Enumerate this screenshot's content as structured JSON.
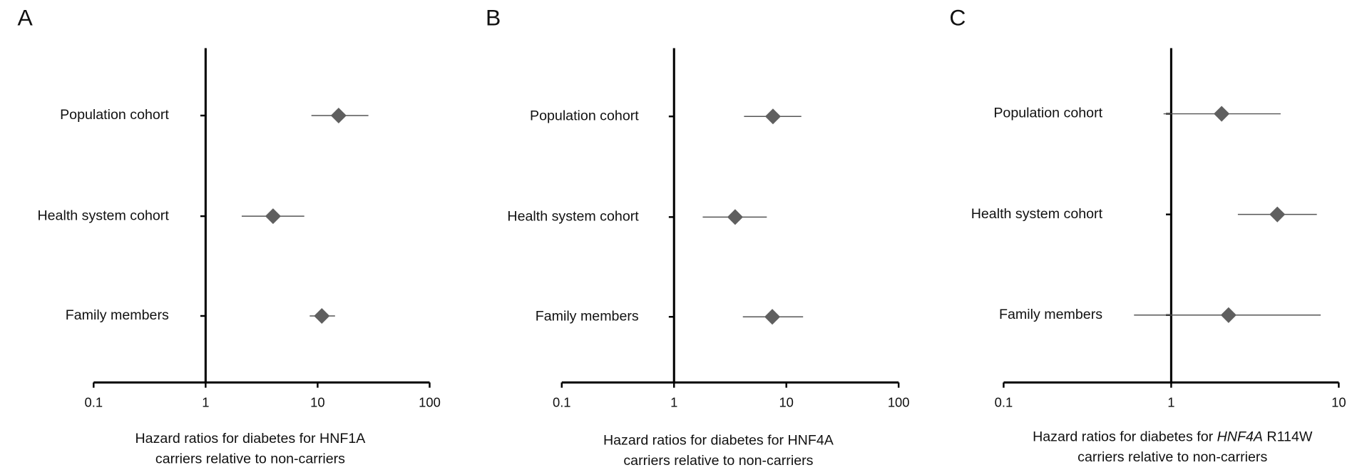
{
  "chart_data": [
    {
      "type": "forest",
      "panel": "A",
      "categories": [
        "Population cohort",
        "Health system cohort",
        "Family members"
      ],
      "values": [
        15.4,
        4.0,
        10.9
      ],
      "ci_low": [
        8.8,
        2.1,
        8.5
      ],
      "ci_high": [
        28.4,
        7.6,
        14.3
      ],
      "color": "#5f5f5f",
      "xscale": "log",
      "xlim": [
        0.1,
        100
      ],
      "xticks": [
        0.1,
        1,
        10,
        100
      ],
      "reference": 1,
      "xlabel": [
        "Hazard ratios for diabetes for HNF1A",
        "carriers relative to non-carriers"
      ]
    },
    {
      "type": "forest",
      "panel": "B",
      "categories": [
        "Population cohort",
        "Health system cohort",
        "Family members"
      ],
      "values": [
        7.6,
        3.5,
        7.5
      ],
      "ci_low": [
        4.2,
        1.8,
        4.1
      ],
      "ci_high": [
        13.6,
        6.7,
        14.1
      ],
      "color": "#5f5f5f",
      "xscale": "log",
      "xlim": [
        0.1,
        100
      ],
      "xticks": [
        0.1,
        1,
        10,
        100
      ],
      "reference": 1,
      "xlabel": [
        "Hazard ratios for diabetes for HNF4A",
        "carriers relative to non-carriers"
      ]
    },
    {
      "type": "forest",
      "panel": "C",
      "categories": [
        "Population cohort",
        "Health system cohort",
        "Family members"
      ],
      "values": [
        2.0,
        4.3,
        2.2
      ],
      "ci_low": [
        0.9,
        2.5,
        0.6
      ],
      "ci_high": [
        4.5,
        7.4,
        7.8
      ],
      "color": "#5f5f5f",
      "xscale": "log",
      "xlim": [
        0.1,
        10
      ],
      "xticks": [
        0.1,
        1,
        10
      ],
      "reference": 1,
      "xlabel": [
        [
          "Hazard ratios for diabetes for ",
          "HNF4A",
          " R114W"
        ],
        "carriers relative to non-carriers"
      ],
      "italic_segment": 1
    }
  ]
}
